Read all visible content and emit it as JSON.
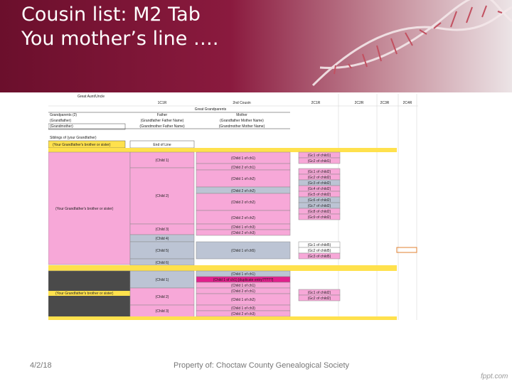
{
  "slide": {
    "title_line1": "Cousin list:  M2 Tab",
    "title_line2": "You mother’s line ….",
    "date": "4/2/18",
    "property": "Property of: Choctaw County Genealogical Society",
    "brand": "fppt.com"
  },
  "sheet": {
    "col_headers": [
      "Great Aunt/Uncle",
      "1C1R",
      "2nd Cousin",
      "2C1R",
      "2C2R",
      "2C3R",
      "2C4R"
    ],
    "great_grandparents": "Great Grandparents",
    "grandparents_label": "Grandparents (2)",
    "grandfather": "(Grandfather)",
    "grandmother": "(Grandmother)",
    "father_label": "Father",
    "mother_label": "Mother",
    "gf_father": "(Grandfather Father Name)",
    "gm_father": "(Grandmother Father Name)",
    "gf_mother": "(Grandfather Mother Name)",
    "gm_mother": "(Grandmother Mother Name)",
    "siblings_label": "Siblings of (your Grandfather)",
    "brother1": "(Your Grandfather's brother or sister)",
    "end_of_line": "End of Line",
    "brother2": "(Your Grandfather's brother or sister)",
    "brother3": "(Your Grandfather's brother or sister)",
    "gen1": [
      "(Child 1)",
      "(Child 2)",
      "(Child 3)",
      "(Child 4)",
      "(Child 5)",
      "(Child 6)",
      "(Child 1)",
      "(Child 2)",
      "(Child 3)"
    ],
    "gen2": [
      "(Child 1 of ch1)",
      "(Child 2 of ch1)",
      "(Child 1 of ch2)",
      "(Child 2 of ch2)",
      "(Child 2 of ch2)",
      "(Child 2 of ch2)",
      "(Child 1 of ch3)",
      "(Child 2 of ch3)",
      "(Child 1 of ch5)",
      "(Child 1 of ch1)",
      "(Child 1 of ch1) [duplicate entry?????]",
      "(Child 1 of ch1)",
      "(Child 2 of ch1)",
      "(Child 1 of ch2)",
      "(Child 1 of ch3)",
      "(Child 2 of ch3)"
    ],
    "gen3_a": [
      "(Gc1 of child1)",
      "(Gc2 of child1)"
    ],
    "gen3_b": [
      "(Gc1 of child2)",
      "(Gc2 of child2)",
      "(Gc3 of child2)",
      "(Gc4 of child2)",
      "(Gc5 of child2)",
      "(Gc6 of child2)",
      "(Gc7 of child2)",
      "(Gc8 of child2)",
      "(Gc9 of child2)"
    ],
    "gen3_c": [
      "(Gc1 of child5)",
      "(Gc2 of child5)",
      "(Gc3 of child5)"
    ],
    "gen3_d": [
      "(Gc1 of child2)",
      "(Gc2 of child2)"
    ]
  }
}
